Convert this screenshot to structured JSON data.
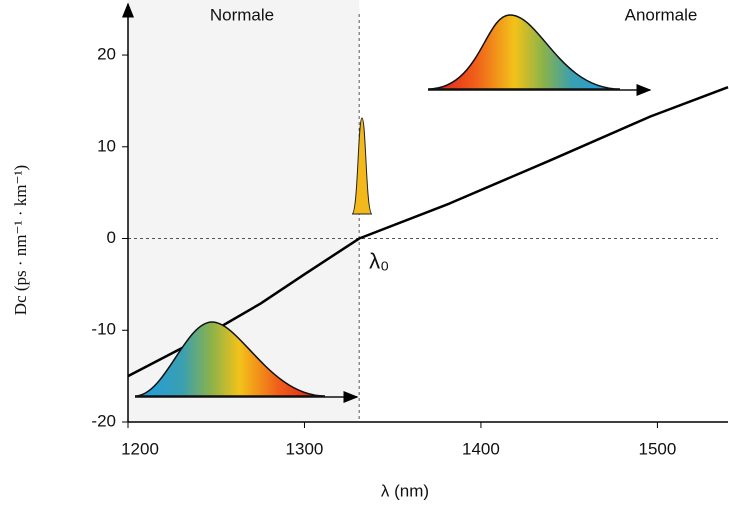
{
  "chart_data": {
    "type": "line",
    "x_label": "λ (nm)",
    "y_label": "Dc (ps · nm⁻¹ · km⁻¹)",
    "regions": [
      "Normale",
      "Anormale"
    ],
    "zero_label": "λ₀",
    "zero_wavelength": 1331,
    "x": [
      1200,
      1241,
      1275,
      1300,
      1331,
      1382,
      1439,
      1496,
      1540
    ],
    "series": [
      {
        "color": "#000000",
        "values": [
          -15,
          -10.9,
          -7.1,
          -3.9,
          0,
          3.8,
          8.5,
          13.3,
          16.5
        ]
      }
    ],
    "xlim": [
      1200,
      1540
    ],
    "xticks": [
      1200,
      1300,
      1400,
      1500
    ],
    "ylim": [
      -20,
      26
    ],
    "yticks": [
      -20,
      -10,
      0,
      10,
      20
    ]
  }
}
